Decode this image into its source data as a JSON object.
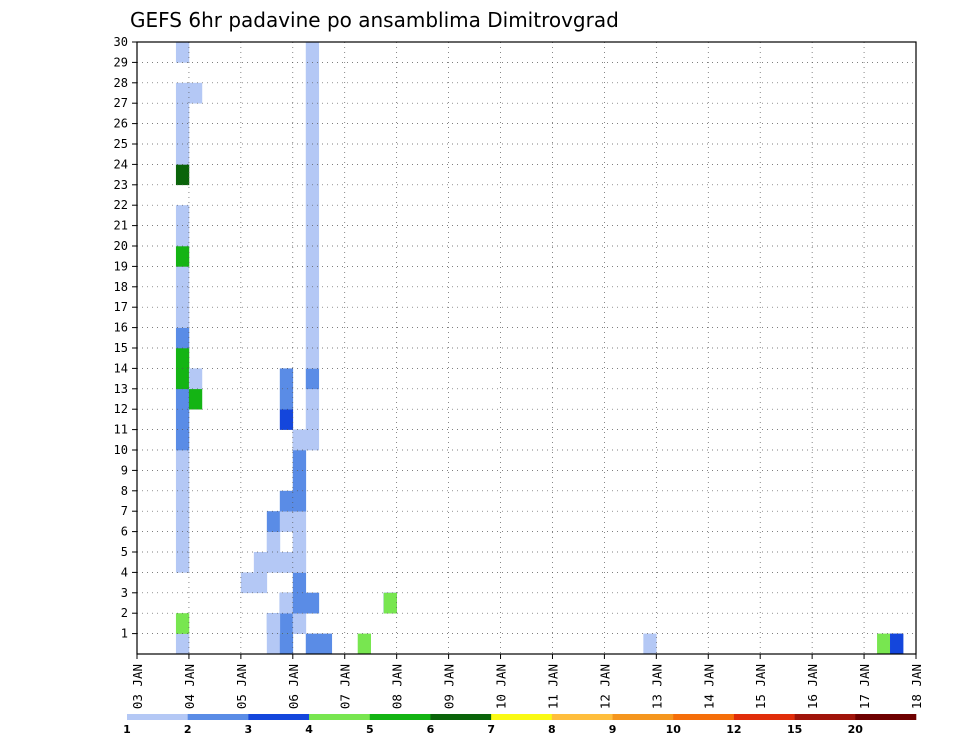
{
  "chart_data": {
    "type": "heatmap",
    "title": "GEFS 6hr padavine po ansamblima Dimitrovgrad",
    "x_ticks": [
      "03 JAN",
      "04 JAN",
      "05 JAN",
      "06 JAN",
      "07 JAN",
      "08 JAN",
      "09 JAN",
      "10 JAN",
      "11 JAN",
      "12 JAN",
      "13 JAN",
      "14 JAN",
      "15 JAN",
      "16 JAN",
      "17 JAN",
      "18 JAN"
    ],
    "y_ticks": [
      "1",
      "2",
      "3",
      "4",
      "5",
      "6",
      "7",
      "8",
      "9",
      "10",
      "11",
      "12",
      "13",
      "14",
      "15",
      "16",
      "17",
      "18",
      "19",
      "20",
      "21",
      "22",
      "23",
      "24",
      "25",
      "26",
      "27",
      "28",
      "29",
      "30"
    ],
    "xlim": [
      0,
      60
    ],
    "ylim": [
      0,
      30
    ],
    "grid": true,
    "colorbar": {
      "labels": [
        "1",
        "2",
        "3",
        "4",
        "5",
        "6",
        "7",
        "8",
        "9",
        "10",
        "12",
        "15",
        "20"
      ],
      "colors": [
        "#b4c8f5",
        "#5a8ce6",
        "#1446dc",
        "#78e650",
        "#14b414",
        "#0a640a",
        "#fafa14",
        "#ffbe3c",
        "#f5961e",
        "#f56e0a",
        "#e12d0a",
        "#a0140a",
        "#6e0000"
      ]
    },
    "cells": [
      [
        3,
        1,
        1
      ],
      [
        10,
        1,
        1
      ],
      [
        11,
        1,
        2
      ],
      [
        13,
        1,
        2
      ],
      [
        14,
        1,
        2
      ],
      [
        3,
        2,
        4
      ],
      [
        11,
        2,
        4
      ],
      [
        11,
        3,
        3
      ],
      [
        11,
        3,
        1
      ],
      [
        11,
        3,
        2
      ],
      [
        17,
        1,
        4
      ],
      [
        19,
        3,
        3
      ],
      [
        19,
        3,
        4
      ],
      [
        39,
        1,
        1
      ],
      [
        57,
        1,
        4
      ],
      [
        58,
        1,
        2
      ],
      [
        58,
        1,
        3
      ],
      [
        10,
        2,
        2
      ],
      [
        11,
        3,
        1
      ],
      [
        11,
        2,
        2
      ],
      [
        10,
        2,
        1
      ],
      [
        11,
        3,
        1
      ],
      [
        13,
        3,
        2
      ],
      [
        12,
        2,
        1
      ],
      [
        12,
        2,
        1
      ],
      [
        12,
        3,
        2
      ],
      [
        13,
        3,
        2
      ],
      [
        12,
        4,
        2
      ],
      [
        11,
        5,
        1
      ],
      [
        11,
        5,
        1
      ],
      [
        12,
        5,
        1
      ],
      [
        12,
        5,
        1
      ],
      [
        12,
        6,
        1
      ],
      [
        12,
        6,
        1
      ],
      [
        12,
        7,
        1
      ],
      [
        12,
        8,
        1
      ],
      [
        12,
        9,
        1
      ],
      [
        12,
        10,
        1
      ],
      [
        12,
        11,
        2
      ],
      [
        11,
        12,
        3
      ],
      [
        11,
        13,
        2
      ],
      [
        11,
        14,
        2
      ],
      [
        8,
        4,
        1
      ],
      [
        9,
        4,
        1
      ],
      [
        9,
        5,
        1
      ],
      [
        10,
        5,
        1
      ],
      [
        10,
        6,
        1
      ],
      [
        10,
        6,
        1
      ],
      [
        10,
        7,
        2
      ],
      [
        11,
        7,
        1
      ],
      [
        11,
        8,
        2
      ],
      [
        12,
        8,
        2
      ],
      [
        12,
        9,
        2
      ],
      [
        12,
        10,
        2
      ],
      [
        12,
        11,
        1
      ],
      [
        13,
        11,
        1
      ],
      [
        13,
        12,
        1
      ],
      [
        13,
        13,
        1
      ],
      [
        13,
        14,
        2
      ],
      [
        13,
        15,
        1
      ],
      [
        13,
        16,
        1
      ],
      [
        13,
        17,
        1
      ],
      [
        13,
        18,
        1
      ],
      [
        13,
        19,
        1
      ],
      [
        13,
        20,
        1
      ],
      [
        13,
        21,
        1
      ],
      [
        13,
        22,
        1
      ],
      [
        13,
        23,
        1
      ],
      [
        13,
        24,
        1
      ],
      [
        13,
        25,
        1
      ],
      [
        13,
        26,
        1
      ],
      [
        13,
        27,
        1
      ],
      [
        13,
        28,
        1
      ],
      [
        13,
        29,
        1
      ],
      [
        13,
        30,
        1
      ],
      [
        3,
        5,
        1
      ],
      [
        3,
        6,
        1
      ],
      [
        3,
        7,
        1
      ],
      [
        3,
        8,
        1
      ],
      [
        3,
        9,
        1
      ],
      [
        3,
        10,
        1
      ],
      [
        3,
        11,
        2
      ],
      [
        3,
        12,
        2
      ],
      [
        3,
        13,
        2
      ],
      [
        3,
        14,
        5
      ],
      [
        4,
        13,
        5
      ],
      [
        4,
        14,
        1
      ],
      [
        3,
        15,
        5
      ],
      [
        3,
        16,
        2
      ],
      [
        3,
        17,
        1
      ],
      [
        3,
        18,
        1
      ],
      [
        3,
        19,
        1
      ],
      [
        3,
        20,
        5
      ],
      [
        3,
        21,
        1
      ],
      [
        3,
        22,
        1
      ],
      [
        3,
        24,
        6
      ],
      [
        3,
        25,
        1
      ],
      [
        3,
        26,
        1
      ],
      [
        3,
        27,
        1
      ],
      [
        3,
        28,
        1
      ],
      [
        4,
        28,
        1
      ],
      [
        3,
        30,
        1
      ]
    ]
  }
}
